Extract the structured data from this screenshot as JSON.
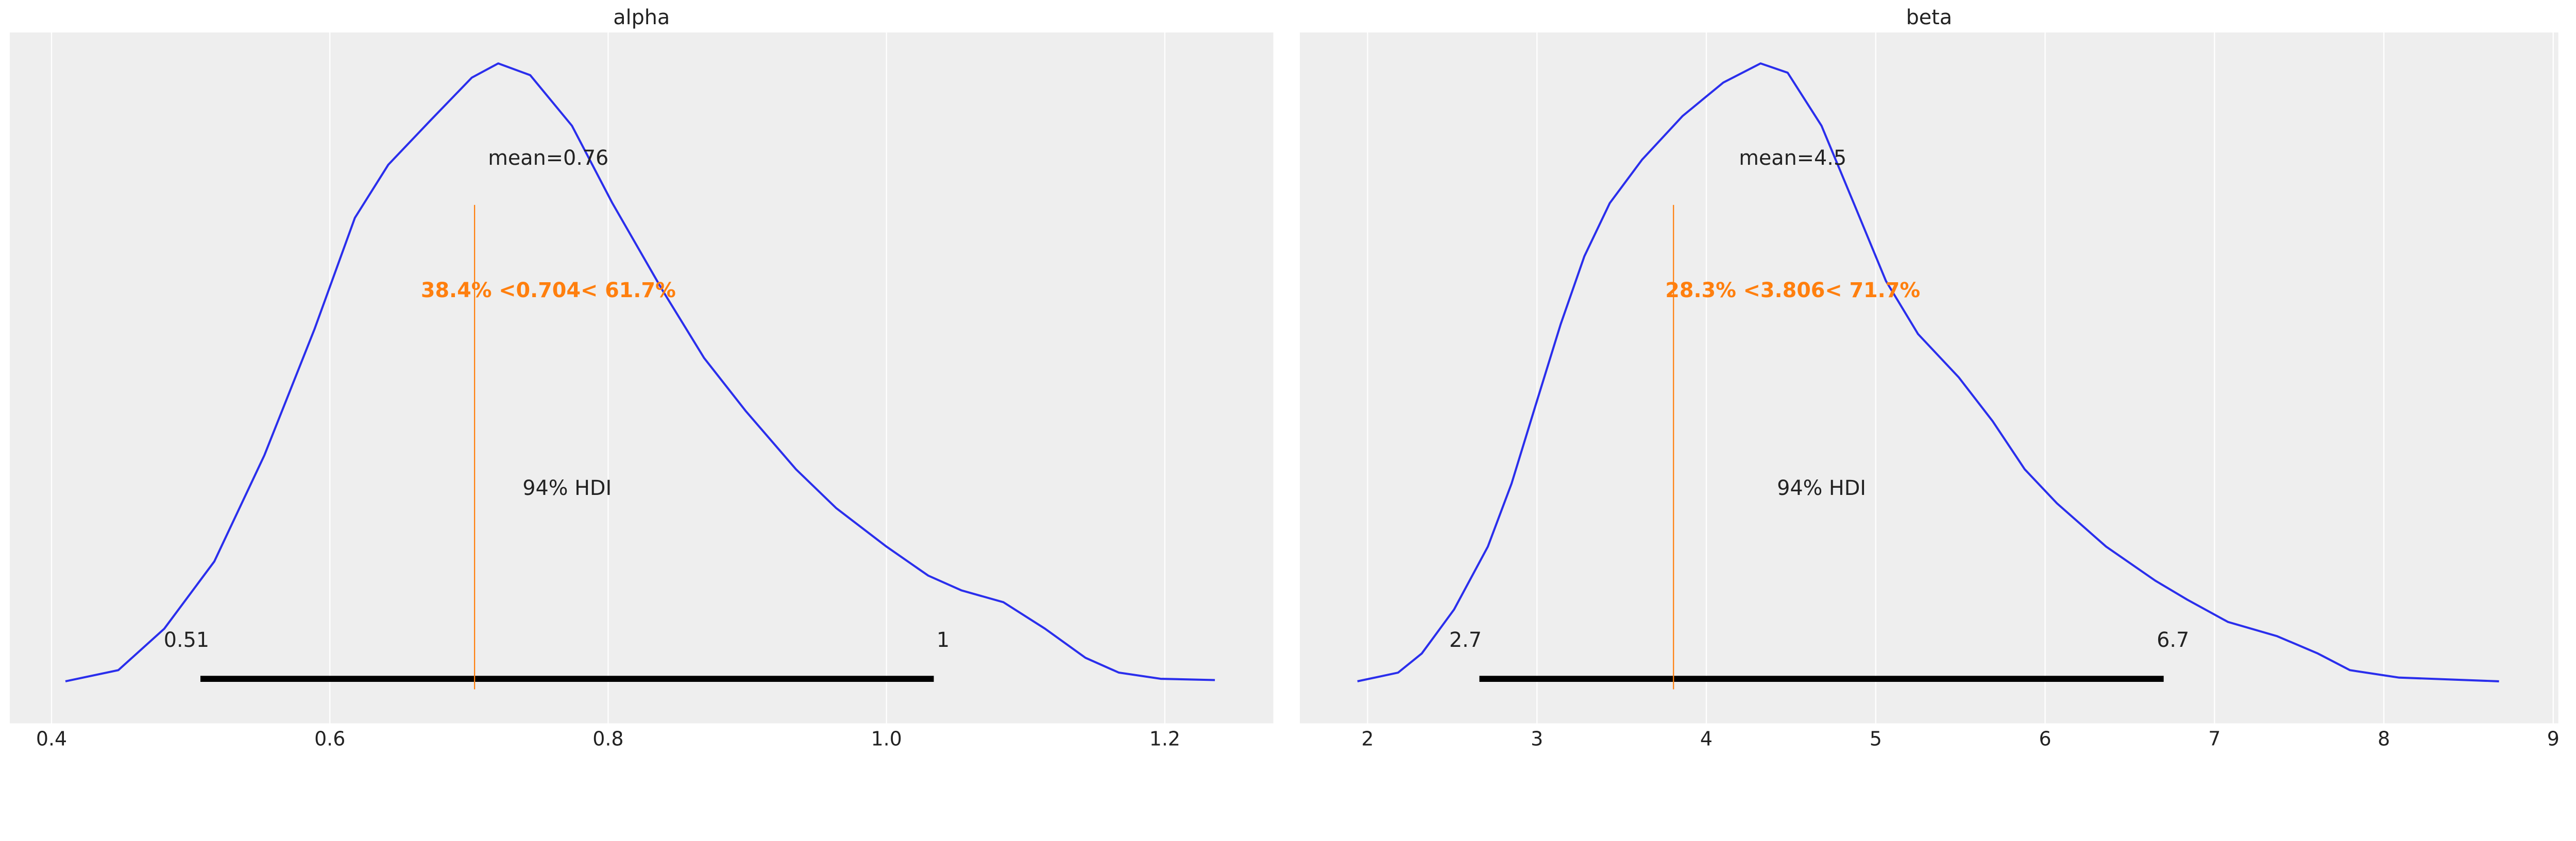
{
  "colors": {
    "background": "#eeeeee",
    "grid": "#ffffff",
    "density": "#2a2eec",
    "reference": "#ff7f0e",
    "hdi": "#000000",
    "text": "#222222"
  },
  "chart_data": [
    {
      "type": "line",
      "title": "alpha",
      "xlim": [
        0.37,
        1.278
      ],
      "ylim": [
        -0.068,
        1.05
      ],
      "grid": "vertical",
      "xticks": [
        0.4,
        0.6,
        0.8,
        1.0,
        1.2
      ],
      "xtick_labels": [
        "0.4",
        "0.6",
        "0.8",
        "1.0",
        "1.2"
      ],
      "density": {
        "x": [
          0.41,
          0.448,
          0.481,
          0.517,
          0.553,
          0.589,
          0.618,
          0.642,
          0.672,
          0.702,
          0.721,
          0.744,
          0.774,
          0.803,
          0.839,
          0.869,
          0.899,
          0.935,
          0.964,
          1.0,
          1.03,
          1.054,
          1.084,
          1.114,
          1.143,
          1.167,
          1.197,
          1.236
        ],
        "y": [
          0,
          0.018,
          0.085,
          0.194,
          0.366,
          0.57,
          0.75,
          0.836,
          0.907,
          0.977,
          1,
          0.981,
          0.899,
          0.774,
          0.633,
          0.523,
          0.437,
          0.343,
          0.28,
          0.218,
          0.171,
          0.147,
          0.128,
          0.085,
          0.038,
          0.014,
          0.004,
          0.002
        ]
      },
      "mean": 0.757,
      "mean_label": "mean=0.76",
      "reference_value": 0.704,
      "reference_label": "38.4% <0.704< 61.7%",
      "hdi": [
        0.507,
        1.034
      ],
      "hdi_label": "94% HDI",
      "hdi_low_label": "0.51",
      "hdi_high_label": "1"
    },
    {
      "type": "line",
      "title": "beta",
      "xlim": [
        1.6,
        9.03
      ],
      "ylim": [
        -0.068,
        1.05
      ],
      "grid": "vertical",
      "xticks": [
        2,
        3,
        4,
        5,
        6,
        7,
        8,
        9
      ],
      "xtick_labels": [
        "2",
        "3",
        "4",
        "5",
        "6",
        "7",
        "8",
        "9"
      ],
      "density": {
        "x": [
          1.94,
          2.18,
          2.32,
          2.51,
          2.71,
          2.85,
          2.99,
          3.14,
          3.28,
          3.43,
          3.62,
          3.86,
          4.1,
          4.32,
          4.48,
          4.68,
          4.87,
          5.06,
          5.25,
          5.49,
          5.69,
          5.88,
          6.07,
          6.36,
          6.65,
          6.84,
          7.08,
          7.37,
          7.61,
          7.8,
          8.09,
          8.68
        ],
        "y": [
          0,
          0.014,
          0.045,
          0.116,
          0.218,
          0.32,
          0.445,
          0.578,
          0.688,
          0.774,
          0.844,
          0.915,
          0.969,
          1,
          0.985,
          0.899,
          0.774,
          0.648,
          0.562,
          0.492,
          0.421,
          0.343,
          0.288,
          0.218,
          0.163,
          0.132,
          0.096,
          0.073,
          0.045,
          0.018,
          0.006,
          0
        ]
      },
      "mean": 4.51,
      "mean_label": "mean=4.5",
      "reference_value": 3.806,
      "reference_label": "28.3% <3.806< 71.7%",
      "hdi": [
        2.66,
        6.7
      ],
      "hdi_label": "94% HDI",
      "hdi_low_label": "2.7",
      "hdi_high_label": "6.7"
    }
  ]
}
